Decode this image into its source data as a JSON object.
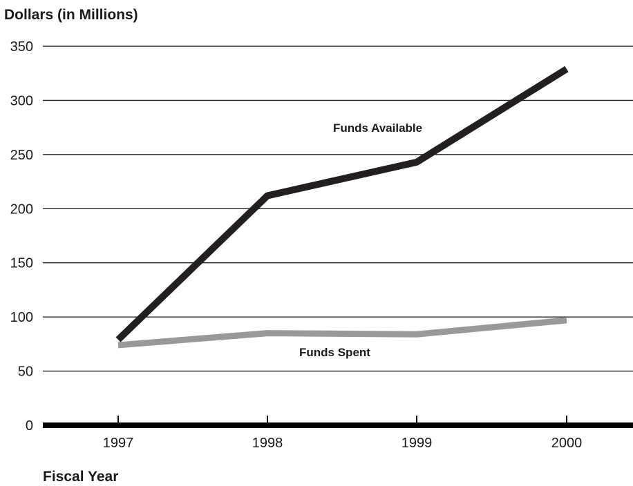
{
  "chart_data": {
    "type": "line",
    "title": "",
    "ylabel": "Dollars (in Millions)",
    "xlabel": "Fiscal Year",
    "x": [
      "1997",
      "1998",
      "1999",
      "2000"
    ],
    "ylim": [
      0,
      350
    ],
    "yticks": [
      0,
      50,
      100,
      150,
      200,
      250,
      300,
      350
    ],
    "grid": true,
    "series": [
      {
        "name": "Funds Available",
        "values": [
          79,
          212,
          243,
          329
        ],
        "color": "#231f20"
      },
      {
        "name": "Funds Spent",
        "values": [
          74,
          85,
          84,
          97
        ],
        "color": "#999999"
      }
    ],
    "annotations": [
      {
        "text": "Funds Available",
        "series": 0
      },
      {
        "text": "Funds Spent",
        "series": 1
      }
    ],
    "baseline_color": "#000000",
    "grid_color": "#231f20"
  }
}
